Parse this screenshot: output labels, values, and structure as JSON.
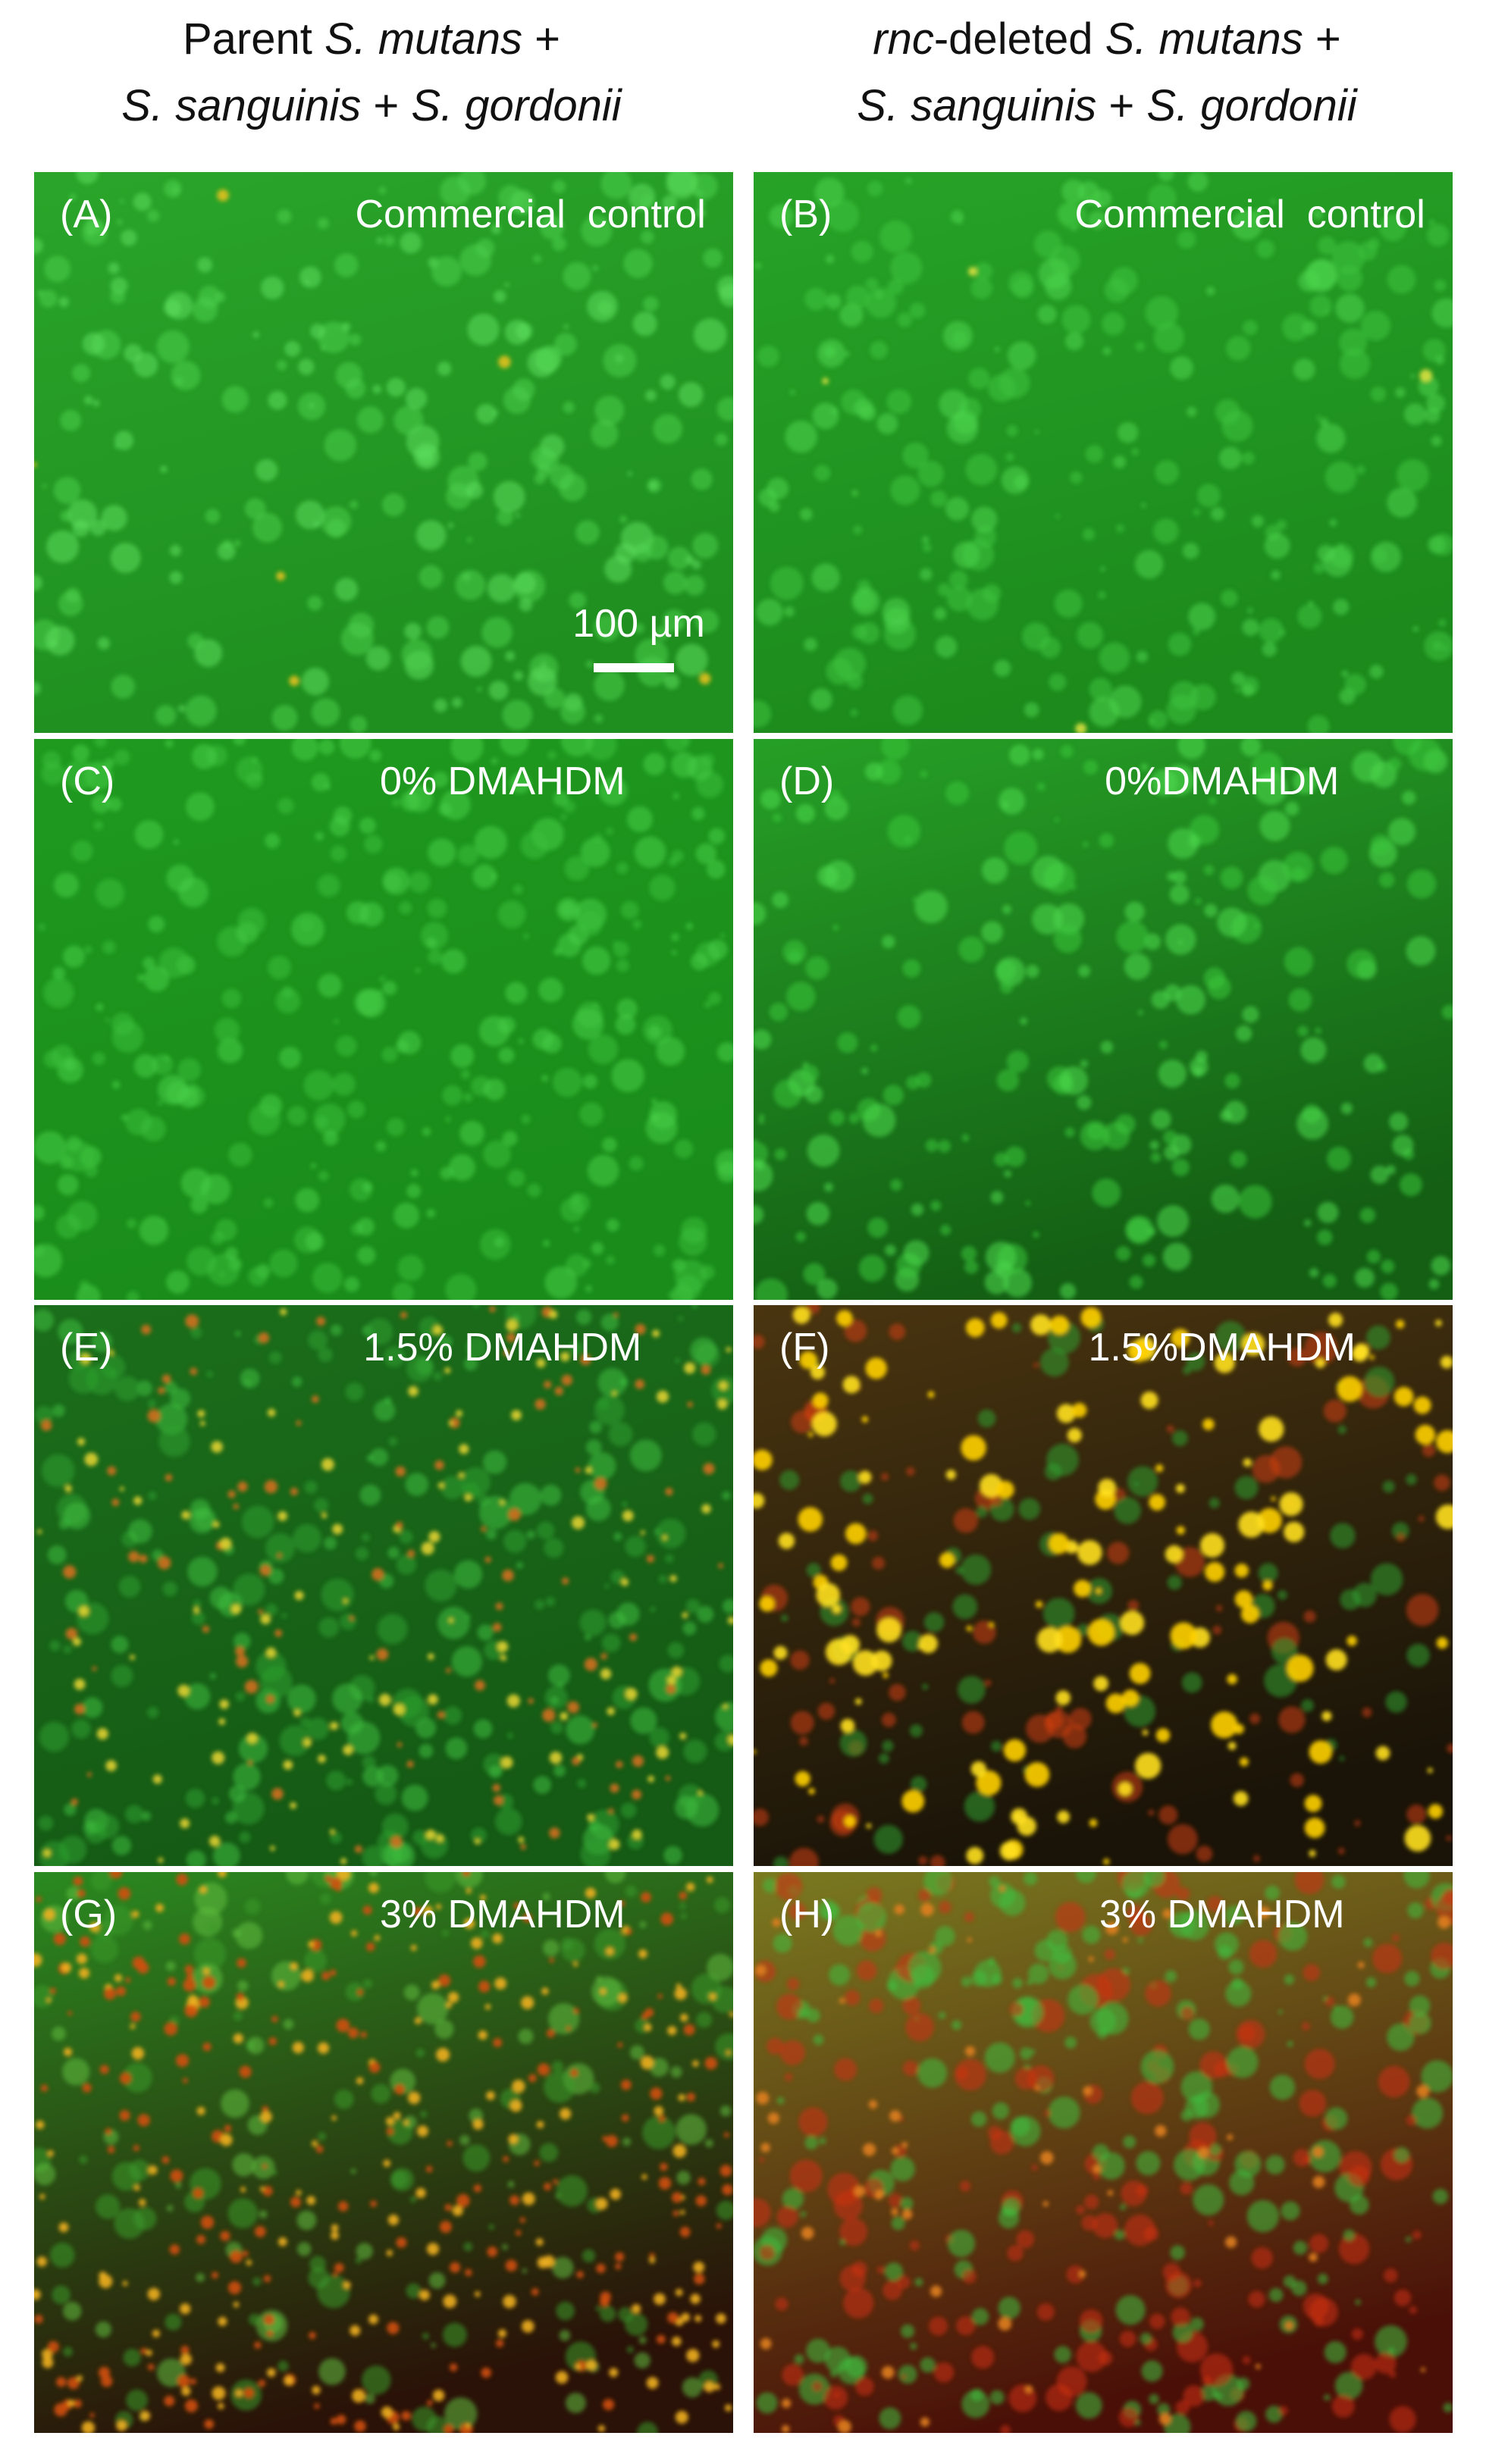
{
  "headers": [
    {
      "lines": [
        [
          {
            "text": "Parent ",
            "italic": false
          },
          {
            "text": "S. mutans",
            "italic": true
          },
          {
            "text": " +",
            "italic": false
          }
        ],
        [
          {
            "text": "S. sanguinis",
            "italic": true
          },
          {
            "text": " + ",
            "italic": false
          },
          {
            "text": "S. gordonii",
            "italic": true
          }
        ]
      ]
    },
    {
      "lines": [
        [
          {
            "text": "rnc",
            "italic": true
          },
          {
            "text": "-deleted ",
            "italic": false
          },
          {
            "text": "S. mutans",
            "italic": true
          },
          {
            "text": " +",
            "italic": false
          }
        ],
        [
          {
            "text": "S. sanguinis",
            "italic": true
          },
          {
            "text": " + ",
            "italic": false
          },
          {
            "text": "S. gordonii",
            "italic": true
          }
        ]
      ]
    }
  ],
  "panels": [
    {
      "label": "(A)",
      "caption": "Commercial  control",
      "scale_bar": "100 µm"
    },
    {
      "label": "(B)",
      "caption": "Commercial  control"
    },
    {
      "label": "(C)",
      "caption": "0% DMAHDM"
    },
    {
      "label": "(D)",
      "caption": "0%DMAHDM"
    },
    {
      "label": "(E)",
      "caption": "1.5% DMAHDM"
    },
    {
      "label": "(F)",
      "caption": "1.5%DMAHDM"
    },
    {
      "label": "(G)",
      "caption": "3% DMAHDM"
    },
    {
      "label": "(H)",
      "caption": "3% DMAHDM"
    }
  ]
}
